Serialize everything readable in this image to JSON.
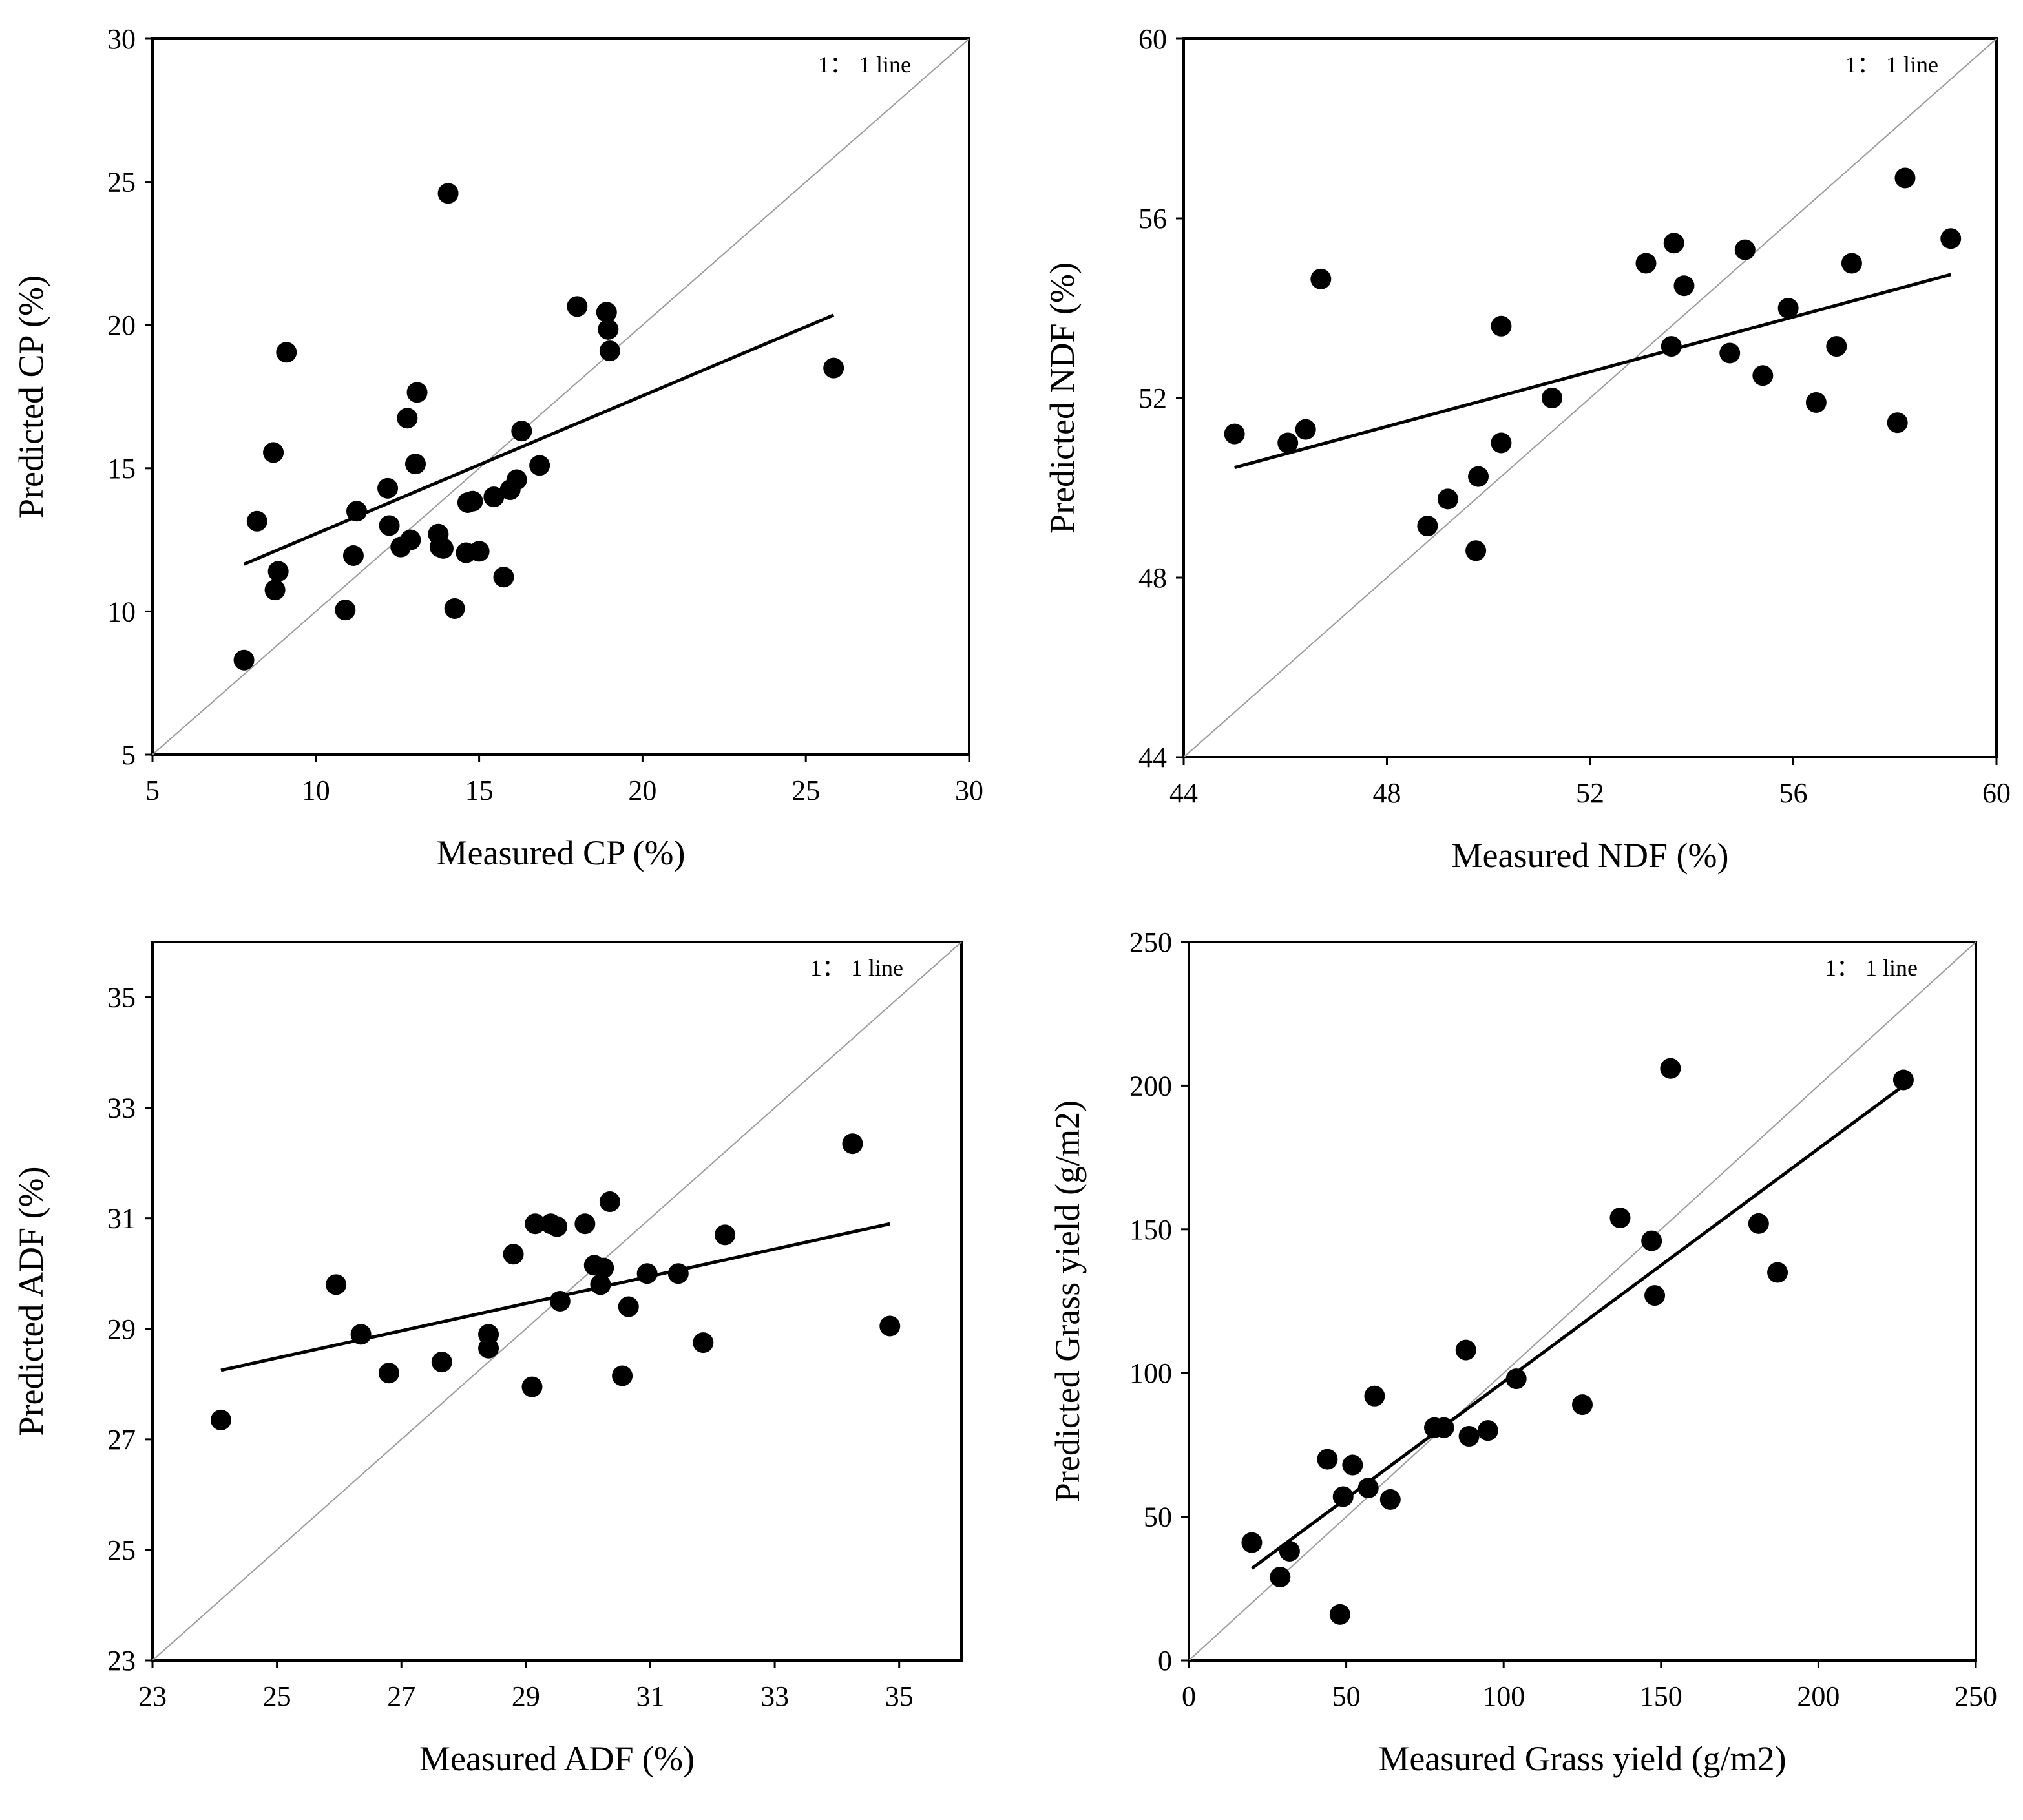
{
  "figure": {
    "panels_layout": "2x2 grid",
    "marker_color": "#000000",
    "identity_line_color": "#9a9a9a",
    "regression_line_color": "#000000"
  },
  "chart_data": [
    {
      "type": "scatter",
      "id": "cp",
      "annotation": "1： 1 line",
      "xlabel": "Measured  CP (%)",
      "ylabel": "Predicted  CP (%)",
      "xlim": [
        5,
        30
      ],
      "ylim": [
        5,
        30
      ],
      "xticks": [
        5,
        10,
        15,
        20,
        25,
        30
      ],
      "yticks": [
        5,
        10,
        15,
        20,
        25,
        30
      ],
      "x": [
        7.8,
        8.2,
        8.7,
        8.75,
        8.85,
        9.1,
        10.9,
        11.15,
        11.25,
        12.2,
        12.25,
        12.6,
        12.8,
        12.9,
        13.05,
        13.1,
        13.75,
        13.8,
        13.9,
        14.05,
        14.25,
        14.6,
        14.65,
        14.8,
        15.0,
        15.45,
        15.75,
        15.95,
        16.15,
        16.3,
        16.85,
        18.0,
        18.9,
        18.95,
        19.0,
        25.85
      ],
      "y": [
        8.3,
        13.15,
        15.55,
        10.75,
        11.4,
        19.05,
        10.05,
        11.95,
        13.5,
        14.3,
        13.0,
        12.25,
        16.75,
        12.5,
        15.15,
        17.65,
        12.7,
        12.25,
        12.2,
        24.6,
        10.1,
        12.05,
        13.8,
        13.85,
        12.1,
        14.0,
        11.2,
        14.25,
        14.6,
        16.3,
        15.1,
        20.65,
        20.45,
        19.85,
        19.1,
        18.5
      ],
      "regression": {
        "x": [
          7.8,
          25.85
        ],
        "y": [
          11.65,
          20.35
        ]
      },
      "identity_line": true
    },
    {
      "type": "scatter",
      "id": "ndf",
      "annotation": "1： 1 line",
      "xlabel": "Measured  NDF (%)",
      "ylabel": "Predicted  NDF (%)",
      "xlim": [
        44,
        60
      ],
      "ylim": [
        44,
        60
      ],
      "xticks": [
        44,
        48,
        52,
        56,
        60
      ],
      "yticks": [
        44,
        48,
        52,
        56,
        60
      ],
      "x": [
        45.0,
        46.05,
        46.4,
        46.7,
        48.8,
        49.2,
        49.75,
        49.8,
        50.25,
        50.25,
        51.25,
        53.1,
        53.6,
        53.65,
        53.85,
        54.75,
        55.05,
        55.4,
        55.9,
        56.45,
        56.85,
        57.15,
        58.05,
        58.2,
        59.1
      ],
      "y": [
        51.2,
        51.0,
        51.3,
        54.65,
        49.15,
        49.75,
        48.6,
        50.25,
        51.0,
        53.6,
        52.0,
        55.0,
        53.15,
        55.45,
        54.5,
        53.0,
        55.3,
        52.5,
        54.0,
        51.9,
        53.15,
        55.0,
        51.45,
        56.9,
        55.55
      ],
      "regression": {
        "x": [
          45.0,
          59.1
        ],
        "y": [
          50.45,
          54.75
        ]
      },
      "identity_line": true
    },
    {
      "type": "scatter",
      "id": "adf",
      "annotation": "1： 1 line",
      "xlabel": "Measured  ADF (%)",
      "ylabel": "Predicted  ADF (%)",
      "xlim": [
        23,
        36
      ],
      "ylim": [
        23,
        36
      ],
      "xticks": [
        23,
        25,
        27,
        29,
        31,
        33,
        35
      ],
      "yticks": [
        23,
        25,
        27,
        29,
        31,
        33,
        35
      ],
      "x": [
        24.1,
        25.95,
        26.35,
        26.8,
        27.65,
        28.4,
        28.4,
        28.8,
        29.1,
        29.15,
        29.4,
        29.5,
        29.55,
        29.95,
        30.1,
        30.2,
        30.25,
        30.35,
        30.55,
        30.65,
        30.95,
        31.45,
        31.85,
        32.2,
        34.25,
        34.85
      ],
      "y": [
        27.35,
        29.8,
        28.9,
        28.2,
        28.4,
        28.65,
        28.9,
        30.35,
        27.95,
        30.9,
        30.9,
        30.85,
        29.5,
        30.9,
        30.15,
        29.8,
        30.1,
        31.3,
        28.15,
        29.4,
        30.0,
        30.0,
        28.75,
        30.7,
        32.35,
        29.05
      ],
      "regression": {
        "x": [
          24.1,
          34.85
        ],
        "y": [
          28.25,
          30.9
        ]
      },
      "identity_line": true
    },
    {
      "type": "scatter",
      "id": "grass-yield",
      "annotation": "1： 1 line",
      "xlabel": "Measured  Grass yield (g/m2)",
      "ylabel": "Predicted Grass yield (g/m2)",
      "xlim": [
        0,
        250
      ],
      "ylim": [
        0,
        250
      ],
      "xticks": [
        0,
        50,
        100,
        150,
        200,
        250
      ],
      "yticks": [
        0,
        50,
        100,
        150,
        200,
        250
      ],
      "x": [
        20,
        29,
        32,
        44,
        48,
        49,
        52,
        57,
        59,
        64,
        78,
        81,
        88,
        89,
        95,
        104,
        125,
        137,
        147,
        148,
        153,
        181,
        187,
        227
      ],
      "y": [
        41,
        29,
        38,
        70,
        16,
        57,
        68,
        60,
        92,
        56,
        81,
        81,
        108,
        78,
        80,
        98,
        89,
        154,
        146,
        127,
        206,
        152,
        135,
        202
      ],
      "regression": {
        "x": [
          20,
          227
        ],
        "y": [
          32,
          200
        ]
      },
      "identity_line": true
    }
  ]
}
